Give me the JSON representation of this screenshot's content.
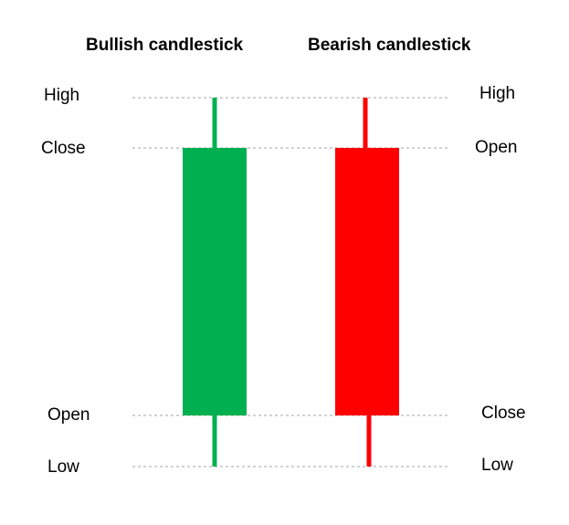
{
  "titles": {
    "bullish": "Bullish candlestick",
    "bearish": "Bearish candlestick"
  },
  "left_labels": {
    "high": "High",
    "close": "Close",
    "open": "Open",
    "low": "Low"
  },
  "right_labels": {
    "high": "High",
    "open": "Open",
    "close": "Close",
    "low": "Low"
  },
  "colors": {
    "bullish": "#00b050",
    "bearish": "#ff0000",
    "guide": "#a6a6a6",
    "text": "#000000"
  }
}
